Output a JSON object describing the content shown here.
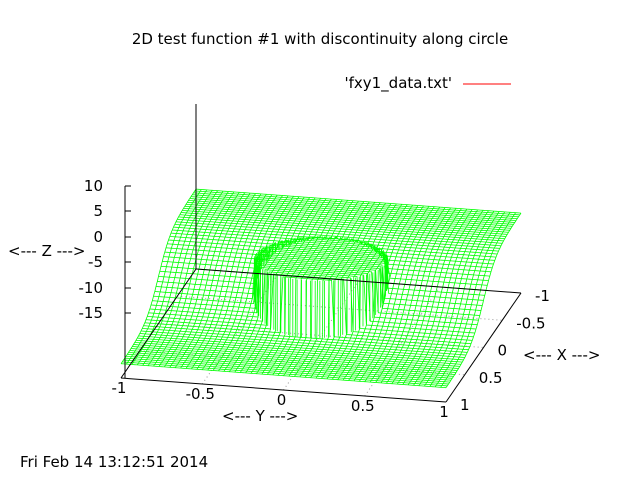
{
  "chart_data": {
    "type": "surface",
    "title": "2D test function #1 with discontinuity along circle",
    "series": [
      {
        "name": "'fxy1_data.txt'",
        "color": "#ff0000",
        "mesh_color": "#00ff00"
      }
    ],
    "xlabel": "<--- X --->",
    "ylabel": "<--- Y --->",
    "zlabel": "<--- Z --->",
    "xlim": [
      -1,
      1
    ],
    "ylim": [
      -1,
      1
    ],
    "zlim": [
      -15,
      10
    ],
    "x_ticks": [
      "-1",
      "-0.5",
      "0",
      "0.5",
      "1"
    ],
    "y_ticks": [
      "-1",
      "-0.5",
      "0",
      "0.5",
      "1"
    ],
    "z_ticks": [
      "10",
      "5",
      "0",
      "-5",
      "-10",
      "-15"
    ],
    "grid": true,
    "legend_position": "top-right",
    "surface": {
      "description_function": "smooth sigmoidal ramp along x with a raised cylindrical plateau inside a circle",
      "base_low_edge_z": -10.5,
      "base_high_edge_z": 10.5,
      "plateau_z": 9.5,
      "circle_radius": 0.4
    },
    "timestamp": "Fri Feb 14 13:12:51 2014"
  }
}
